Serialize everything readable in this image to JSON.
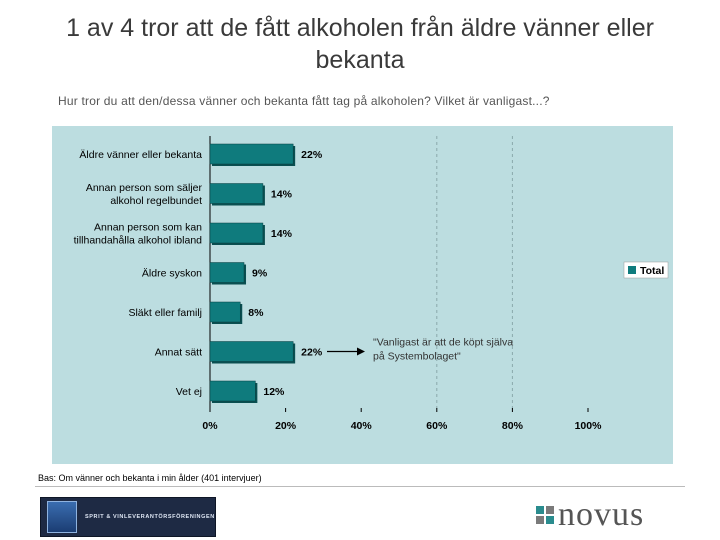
{
  "title": "1 av 4 tror att de fått alkoholen från äldre vänner eller bekanta",
  "subtitle": "Hur tror du att den/dessa vänner och bekanta fått tag på alkoholen? Vilket är vanligast...?",
  "chart_data": {
    "type": "bar",
    "orientation": "horizontal",
    "categories": [
      [
        "Äldre vänner eller bekanta"
      ],
      [
        "Annan person som säljer",
        "alkohol regelbundet"
      ],
      [
        "Annan person som kan",
        "tillhandahålla alkohol ibland"
      ],
      [
        "Äldre syskon"
      ],
      [
        "Släkt eller familj"
      ],
      [
        "Annat sätt"
      ],
      [
        "Vet ej"
      ]
    ],
    "series": [
      {
        "name": "Total",
        "values": [
          22,
          14,
          14,
          9,
          8,
          22,
          12
        ]
      }
    ],
    "value_labels": [
      "22%",
      "14%",
      "14%",
      "9%",
      "8%",
      "22%",
      "12%"
    ],
    "x_ticks": [
      0,
      20,
      40,
      60,
      80,
      100
    ],
    "x_tick_labels": [
      "0%",
      "20%",
      "40%",
      "60%",
      "80%",
      "100%"
    ],
    "xlim": [
      0,
      100
    ],
    "legend": {
      "label": "Total",
      "position": "right"
    },
    "annotation": {
      "lines": [
        "\"Vanligast är att de köpt själva",
        "på Systembolaget\""
      ],
      "target_category": "Annat sätt"
    }
  },
  "footnote": "Bas: Om vänner och bekanta i min ålder (401 intervjuer)",
  "logos": {
    "org": "SPRIT & VINLEVERANTÖRSFÖRENINGEN",
    "novus": "novus"
  },
  "colors": {
    "bar": "#0f7b7d",
    "background": "#bcdde0",
    "novus_squares": [
      "#2a8c8e",
      "#7a7a7a",
      "#7a7a7a",
      "#2a8c8e"
    ]
  }
}
